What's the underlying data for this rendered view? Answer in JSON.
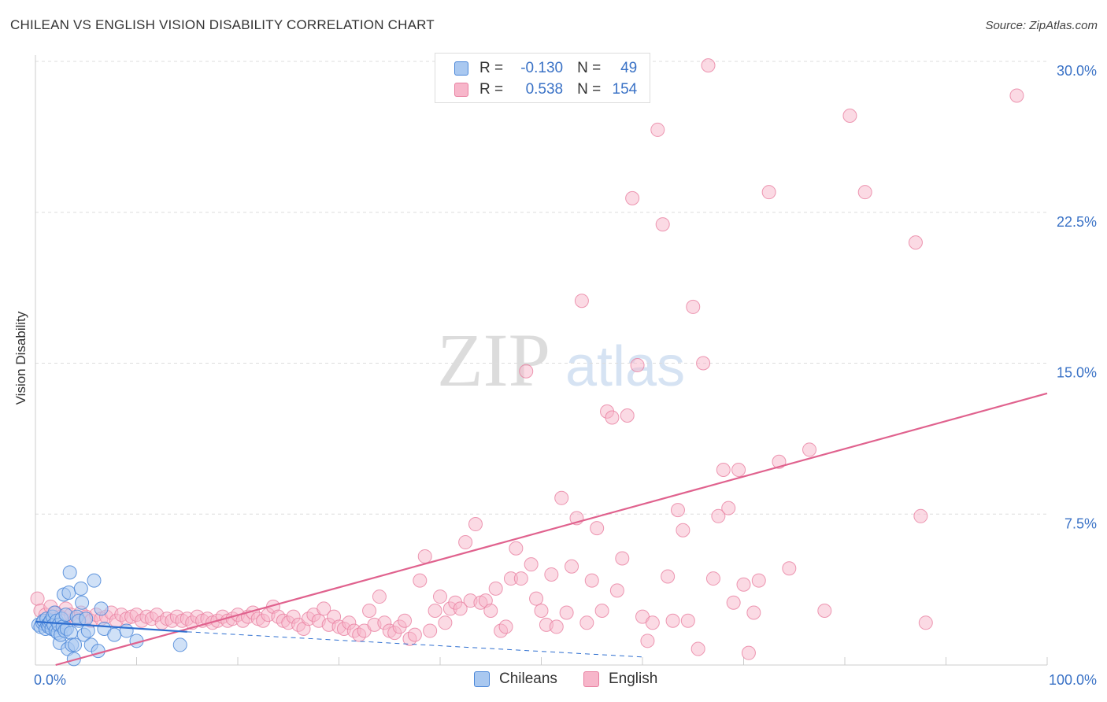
{
  "title": "CHILEAN VS ENGLISH VISION DISABILITY CORRELATION CHART",
  "source": "Source: ZipAtlas.com",
  "watermark": {
    "zip": "ZIP",
    "atlas": "atlas"
  },
  "legend": {
    "rows": [
      {
        "r_label": "R =",
        "r_value": "-0.130",
        "n_label": "N =",
        "n_value": "49"
      },
      {
        "r_label": "R =",
        "r_value": "0.538",
        "n_label": "N =",
        "n_value": "154"
      }
    ]
  },
  "colors": {
    "chileans_fill": "#a9c8f0",
    "chileans_stroke": "#4a86d8",
    "chileans_line": "#2f6fd0",
    "english_fill": "#f7b6ca",
    "english_stroke": "#e87fa0",
    "english_line": "#e0628e",
    "axis_label": "#3a72c6",
    "grid": "#dddddd"
  },
  "chart_data": {
    "type": "scatter",
    "title": "CHILEAN VS ENGLISH VISION DISABILITY CORRELATION CHART",
    "xlabel": "",
    "ylabel": "Vision Disability",
    "xlim": [
      0,
      100
    ],
    "ylim": [
      0,
      30.5
    ],
    "x_tick_labels": [
      {
        "value": 0,
        "label": "0.0%"
      },
      {
        "value": 100,
        "label": "100.0%"
      }
    ],
    "y_tick_labels": [
      {
        "value": 7.5,
        "label": "7.5%"
      },
      {
        "value": 15,
        "label": "15.0%"
      },
      {
        "value": 22.5,
        "label": "22.5%"
      },
      {
        "value": 30,
        "label": "30.0%"
      }
    ],
    "series": [
      {
        "name": "Chileans",
        "points": [
          [
            0.3,
            2.0
          ],
          [
            0.5,
            1.9
          ],
          [
            0.7,
            2.1
          ],
          [
            0.8,
            2.2
          ],
          [
            1.0,
            1.8
          ],
          [
            1.1,
            2.3
          ],
          [
            1.2,
            2.0
          ],
          [
            1.3,
            1.9
          ],
          [
            1.4,
            2.1
          ],
          [
            1.5,
            2.2
          ],
          [
            1.6,
            1.8
          ],
          [
            1.7,
            2.4
          ],
          [
            1.8,
            2.0
          ],
          [
            1.9,
            2.6
          ],
          [
            2.0,
            1.7
          ],
          [
            2.1,
            2.2
          ],
          [
            2.2,
            1.6
          ],
          [
            2.3,
            2.0
          ],
          [
            2.4,
            1.1
          ],
          [
            2.5,
            1.5
          ],
          [
            2.6,
            2.3
          ],
          [
            2.7,
            1.9
          ],
          [
            2.8,
            3.5
          ],
          [
            2.9,
            1.7
          ],
          [
            3.0,
            2.5
          ],
          [
            3.1,
            1.8
          ],
          [
            3.2,
            0.8
          ],
          [
            3.3,
            3.6
          ],
          [
            3.4,
            4.6
          ],
          [
            3.5,
            1.6
          ],
          [
            3.6,
            1.0
          ],
          [
            3.8,
            0.3
          ],
          [
            3.9,
            1.0
          ],
          [
            4.1,
            2.4
          ],
          [
            4.3,
            2.2
          ],
          [
            4.5,
            3.8
          ],
          [
            4.6,
            3.1
          ],
          [
            4.8,
            1.5
          ],
          [
            5.0,
            2.3
          ],
          [
            5.2,
            1.7
          ],
          [
            5.5,
            1.0
          ],
          [
            5.8,
            4.2
          ],
          [
            6.2,
            0.7
          ],
          [
            6.5,
            2.8
          ],
          [
            6.8,
            1.8
          ],
          [
            7.8,
            1.5
          ],
          [
            9.0,
            1.7
          ],
          [
            10.0,
            1.2
          ],
          [
            14.3,
            1.0
          ]
        ],
        "trend": {
          "x": [
            0,
            15
          ],
          "y": [
            2.15,
            1.65
          ],
          "dashed_to": [
            60,
            0.4
          ]
        }
      },
      {
        "name": "English",
        "points": [
          [
            0.2,
            3.3
          ],
          [
            0.5,
            2.7
          ],
          [
            1.0,
            2.5
          ],
          [
            1.5,
            2.9
          ],
          [
            2.0,
            2.6
          ],
          [
            2.5,
            2.4
          ],
          [
            3.0,
            2.8
          ],
          [
            3.5,
            2.5
          ],
          [
            4.0,
            2.3
          ],
          [
            4.5,
            2.6
          ],
          [
            5.0,
            2.4
          ],
          [
            5.5,
            2.2
          ],
          [
            6.0,
            2.5
          ],
          [
            6.5,
            2.3
          ],
          [
            7.0,
            2.4
          ],
          [
            7.5,
            2.6
          ],
          [
            8.0,
            2.2
          ],
          [
            8.5,
            2.5
          ],
          [
            9.0,
            2.3
          ],
          [
            9.5,
            2.4
          ],
          [
            10.0,
            2.5
          ],
          [
            10.5,
            2.2
          ],
          [
            11.0,
            2.4
          ],
          [
            11.5,
            2.3
          ],
          [
            12.0,
            2.5
          ],
          [
            12.5,
            2.1
          ],
          [
            13.0,
            2.3
          ],
          [
            13.5,
            2.2
          ],
          [
            14.0,
            2.4
          ],
          [
            14.5,
            2.2
          ],
          [
            15.0,
            2.3
          ],
          [
            15.5,
            2.1
          ],
          [
            16.0,
            2.4
          ],
          [
            16.5,
            2.2
          ],
          [
            17.0,
            2.3
          ],
          [
            17.5,
            2.1
          ],
          [
            18.0,
            2.2
          ],
          [
            18.5,
            2.4
          ],
          [
            19.0,
            2.2
          ],
          [
            19.5,
            2.3
          ],
          [
            20.0,
            2.5
          ],
          [
            20.5,
            2.2
          ],
          [
            21.0,
            2.4
          ],
          [
            21.5,
            2.6
          ],
          [
            22.0,
            2.3
          ],
          [
            22.5,
            2.2
          ],
          [
            23.0,
            2.5
          ],
          [
            23.5,
            2.9
          ],
          [
            24.0,
            2.4
          ],
          [
            24.5,
            2.2
          ],
          [
            25.0,
            2.1
          ],
          [
            25.5,
            2.4
          ],
          [
            26.0,
            2.0
          ],
          [
            26.5,
            1.8
          ],
          [
            27.0,
            2.3
          ],
          [
            27.5,
            2.5
          ],
          [
            28.0,
            2.2
          ],
          [
            28.5,
            2.8
          ],
          [
            29.0,
            2.0
          ],
          [
            29.5,
            2.4
          ],
          [
            30.0,
            1.9
          ],
          [
            30.5,
            1.8
          ],
          [
            31.0,
            2.1
          ],
          [
            31.5,
            1.7
          ],
          [
            32.0,
            1.5
          ],
          [
            32.5,
            1.7
          ],
          [
            33.0,
            2.7
          ],
          [
            33.5,
            2.0
          ],
          [
            34.0,
            3.4
          ],
          [
            34.5,
            2.1
          ],
          [
            35.0,
            1.7
          ],
          [
            35.5,
            1.6
          ],
          [
            36.0,
            1.9
          ],
          [
            36.5,
            2.2
          ],
          [
            37.0,
            1.3
          ],
          [
            37.5,
            1.5
          ],
          [
            38.0,
            4.2
          ],
          [
            38.5,
            5.4
          ],
          [
            39.0,
            1.7
          ],
          [
            39.5,
            2.7
          ],
          [
            40.0,
            3.4
          ],
          [
            40.5,
            2.1
          ],
          [
            41.0,
            2.8
          ],
          [
            41.5,
            3.1
          ],
          [
            42.0,
            2.8
          ],
          [
            42.5,
            6.1
          ],
          [
            43.0,
            3.2
          ],
          [
            43.5,
            7.0
          ],
          [
            44.0,
            3.1
          ],
          [
            44.5,
            3.2
          ],
          [
            45.0,
            2.7
          ],
          [
            45.5,
            3.8
          ],
          [
            46.0,
            1.7
          ],
          [
            46.5,
            1.9
          ],
          [
            47.0,
            4.3
          ],
          [
            47.5,
            5.8
          ],
          [
            48.0,
            4.3
          ],
          [
            48.5,
            14.6
          ],
          [
            49.0,
            5.0
          ],
          [
            49.5,
            3.3
          ],
          [
            50.0,
            2.7
          ],
          [
            50.5,
            2.0
          ],
          [
            51.0,
            4.5
          ],
          [
            51.5,
            1.9
          ],
          [
            52.0,
            8.3
          ],
          [
            52.5,
            2.6
          ],
          [
            53.0,
            4.9
          ],
          [
            53.5,
            7.3
          ],
          [
            54.0,
            18.1
          ],
          [
            54.5,
            2.1
          ],
          [
            55.0,
            4.2
          ],
          [
            55.5,
            6.8
          ],
          [
            56.0,
            2.7
          ],
          [
            56.5,
            12.6
          ],
          [
            57.0,
            12.3
          ],
          [
            57.5,
            3.7
          ],
          [
            58.0,
            5.3
          ],
          [
            58.5,
            12.4
          ],
          [
            59.0,
            23.2
          ],
          [
            59.5,
            14.9
          ],
          [
            60.0,
            2.4
          ],
          [
            60.5,
            1.2
          ],
          [
            61.0,
            2.1
          ],
          [
            61.5,
            26.6
          ],
          [
            62.0,
            21.9
          ],
          [
            62.5,
            4.4
          ],
          [
            63.0,
            2.2
          ],
          [
            63.5,
            7.7
          ],
          [
            64.0,
            6.7
          ],
          [
            64.5,
            2.2
          ],
          [
            65.0,
            17.8
          ],
          [
            65.5,
            0.8
          ],
          [
            66.0,
            15.0
          ],
          [
            66.5,
            29.8
          ],
          [
            67.0,
            4.3
          ],
          [
            67.5,
            7.4
          ],
          [
            68.0,
            9.7
          ],
          [
            68.5,
            7.8
          ],
          [
            69.0,
            3.1
          ],
          [
            69.5,
            9.7
          ],
          [
            70.0,
            4.0
          ],
          [
            70.5,
            0.6
          ],
          [
            71.0,
            2.6
          ],
          [
            71.5,
            4.2
          ],
          [
            72.5,
            23.5
          ],
          [
            73.5,
            10.1
          ],
          [
            74.5,
            4.8
          ],
          [
            76.5,
            10.7
          ],
          [
            78.0,
            2.7
          ],
          [
            80.5,
            27.3
          ],
          [
            82.0,
            23.5
          ],
          [
            87.0,
            21.0
          ],
          [
            87.5,
            7.4
          ],
          [
            88.0,
            2.1
          ],
          [
            97.0,
            28.3
          ]
        ],
        "trend": {
          "x": [
            2,
            100
          ],
          "y": [
            0,
            13.5
          ]
        }
      }
    ]
  }
}
